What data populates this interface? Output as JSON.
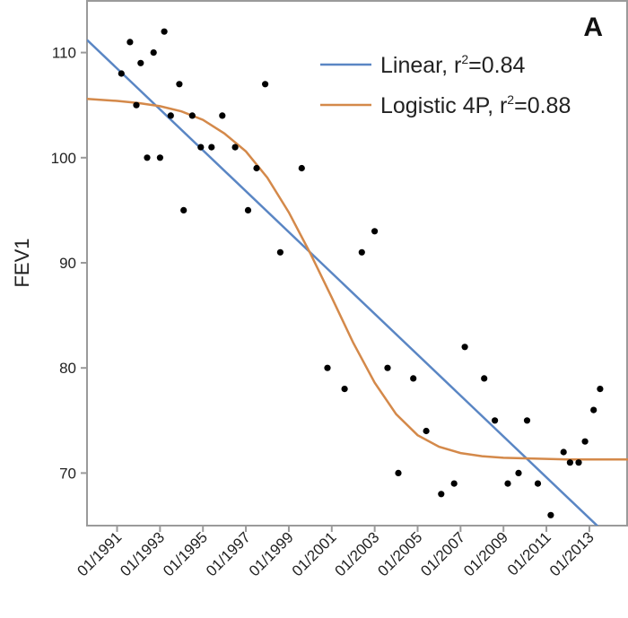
{
  "chart_data": {
    "type": "scatter",
    "panel_label": "A",
    "title": "",
    "xlabel": "",
    "ylabel": "FEV1",
    "x_tick_labels": [
      "01/1991",
      "01/1993",
      "01/1995",
      "01/1997",
      "01/1999",
      "01/2001",
      "01/2003",
      "01/2005",
      "01/2007",
      "01/2009",
      "01/2011",
      "01/2013"
    ],
    "x_ticks": [
      1991,
      1993,
      1995,
      1997,
      1999,
      2001,
      2003,
      2005,
      2007,
      2009,
      2011,
      2013
    ],
    "xlim": [
      1989.6,
      2014.8
    ],
    "yticks": [
      70,
      80,
      90,
      100,
      110
    ],
    "y_tick_labels": [
      "70",
      "80",
      "90",
      "100",
      "110"
    ],
    "ylim": [
      65,
      115
    ],
    "grid": false,
    "legend": {
      "placement": "top-right",
      "entries": [
        {
          "label": "Linear, r",
          "superscript": "2",
          "value": "=0.84",
          "color": "#5a86c4"
        },
        {
          "label": "Logistic 4P, r",
          "superscript": "2",
          "value": "=0.88",
          "color": "#d4894a"
        }
      ]
    },
    "series": [
      {
        "kind": "points",
        "color": "#000000",
        "points": [
          [
            1991.2,
            108
          ],
          [
            1991.6,
            111
          ],
          [
            1991.9,
            105
          ],
          [
            1992.1,
            109
          ],
          [
            1992.4,
            100
          ],
          [
            1992.7,
            110
          ],
          [
            1993.0,
            100
          ],
          [
            1993.2,
            112
          ],
          [
            1993.5,
            104
          ],
          [
            1993.9,
            107
          ],
          [
            1994.1,
            95
          ],
          [
            1994.5,
            104
          ],
          [
            1994.9,
            101
          ],
          [
            1995.4,
            101
          ],
          [
            1995.9,
            104
          ],
          [
            1996.5,
            101
          ],
          [
            1997.1,
            95
          ],
          [
            1997.5,
            99
          ],
          [
            1997.9,
            107
          ],
          [
            1998.6,
            91
          ],
          [
            1999.6,
            99
          ],
          [
            2000.8,
            80
          ],
          [
            2001.6,
            78
          ],
          [
            2002.4,
            91
          ],
          [
            2003.0,
            93
          ],
          [
            2003.6,
            80
          ],
          [
            2004.1,
            70
          ],
          [
            2004.8,
            79
          ],
          [
            2005.4,
            74
          ],
          [
            2006.1,
            68
          ],
          [
            2006.7,
            69
          ],
          [
            2007.2,
            82
          ],
          [
            2008.1,
            79
          ],
          [
            2008.6,
            75
          ],
          [
            2009.2,
            69
          ],
          [
            2009.7,
            70
          ],
          [
            2010.1,
            75
          ],
          [
            2010.6,
            69
          ],
          [
            2011.2,
            66
          ],
          [
            2011.8,
            72
          ],
          [
            2012.1,
            71
          ],
          [
            2012.5,
            71
          ],
          [
            2012.8,
            73
          ],
          [
            2013.2,
            76
          ],
          [
            2013.5,
            78
          ]
        ]
      },
      {
        "kind": "line",
        "name": "Linear",
        "color": "#5a86c4",
        "points": [
          [
            1989.6,
            111.2
          ],
          [
            2014.8,
            62.2
          ]
        ]
      },
      {
        "kind": "line",
        "name": "Logistic 4P",
        "color": "#d4894a",
        "points": [
          [
            1989.6,
            105.6
          ],
          [
            1991,
            105.4
          ],
          [
            1992,
            105.2
          ],
          [
            1993,
            104.9
          ],
          [
            1994,
            104.4
          ],
          [
            1995,
            103.6
          ],
          [
            1996,
            102.3
          ],
          [
            1997,
            100.6
          ],
          [
            1998,
            98.1
          ],
          [
            1999,
            94.8
          ],
          [
            2000,
            90.9
          ],
          [
            2001,
            86.7
          ],
          [
            2002,
            82.4
          ],
          [
            2003,
            78.6
          ],
          [
            2004,
            75.6
          ],
          [
            2005,
            73.6
          ],
          [
            2006,
            72.5
          ],
          [
            2007,
            71.9
          ],
          [
            2008,
            71.6
          ],
          [
            2009,
            71.45
          ],
          [
            2010,
            71.4
          ],
          [
            2011,
            71.35
          ],
          [
            2012,
            71.3
          ],
          [
            2013,
            71.3
          ],
          [
            2014.8,
            71.3
          ]
        ]
      }
    ]
  }
}
